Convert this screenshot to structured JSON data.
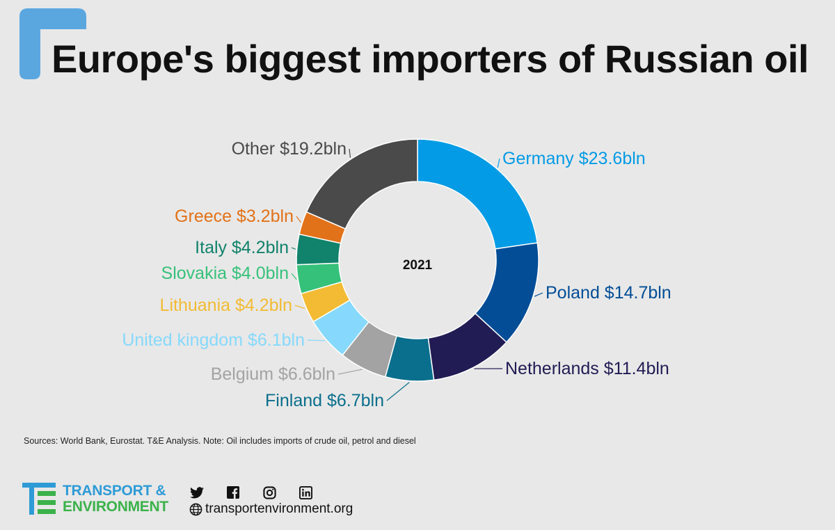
{
  "title": "Europe's biggest importers of Russian oil",
  "chart_data": {
    "type": "pie",
    "variant": "donut",
    "center_label": "2021",
    "unit": "bln USD",
    "slices": [
      {
        "name": "Germany",
        "value": 23.6,
        "label": "Germany $23.6bln",
        "color": "#039be5"
      },
      {
        "name": "Poland",
        "value": 14.7,
        "label": "Poland $14.7bln",
        "color": "#024d96"
      },
      {
        "name": "Netherlands",
        "value": 11.4,
        "label": "Netherlands $11.4bln",
        "color": "#211c54"
      },
      {
        "name": "Finland",
        "value": 6.7,
        "label": "Finland $6.7bln",
        "color": "#0a6f8c"
      },
      {
        "name": "Belgium",
        "value": 6.6,
        "label": "Belgium $6.6bln",
        "color": "#a3a3a3"
      },
      {
        "name": "United kingdom",
        "value": 6.1,
        "label": "United kingdom $6.1bln",
        "color": "#86d9fc"
      },
      {
        "name": "Lithuania",
        "value": 4.2,
        "label": "Lithuania $4.2bln",
        "color": "#f2bb33"
      },
      {
        "name": "Slovakia",
        "value": 4.0,
        "label": "Slovakia $4.0bln",
        "color": "#36c17a"
      },
      {
        "name": "Italy",
        "value": 4.2,
        "label": "Italy $4.2bln",
        "color": "#11826b"
      },
      {
        "name": "Greece",
        "value": 3.2,
        "label": "Greece $3.2bln",
        "color": "#e27219"
      },
      {
        "name": "Other",
        "value": 19.2,
        "label": "Other $19.2bln",
        "color": "#4a4a4a"
      }
    ]
  },
  "footer": {
    "sources": "Sources: World Bank, Eurostat. T&E Analysis.  Note:  Oil includes imports of crude oil, petrol and diesel",
    "logo_line1": "TRANSPORT &",
    "logo_line2": "ENVIRONMENT",
    "website": "transportenvironment.org",
    "social_icons": [
      "twitter-icon",
      "facebook-icon",
      "instagram-icon",
      "linkedin-icon"
    ]
  },
  "colors": {
    "accent": "#5aa7e0",
    "background": "#e8e8e8"
  }
}
